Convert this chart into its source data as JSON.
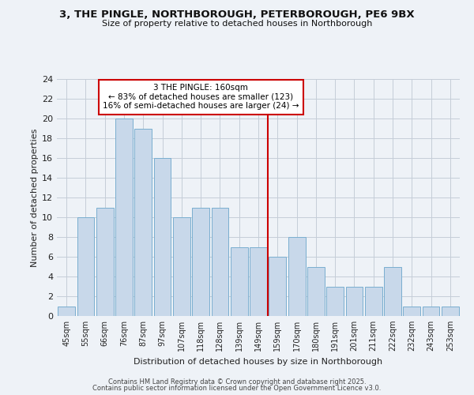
{
  "title1": "3, THE PINGLE, NORTHBOROUGH, PETERBOROUGH, PE6 9BX",
  "title2": "Size of property relative to detached houses in Northborough",
  "xlabel": "Distribution of detached houses by size in Northborough",
  "ylabel": "Number of detached properties",
  "categories": [
    "45sqm",
    "55sqm",
    "66sqm",
    "76sqm",
    "87sqm",
    "97sqm",
    "107sqm",
    "118sqm",
    "128sqm",
    "139sqm",
    "149sqm",
    "159sqm",
    "170sqm",
    "180sqm",
    "191sqm",
    "201sqm",
    "211sqm",
    "222sqm",
    "232sqm",
    "243sqm",
    "253sqm"
  ],
  "values": [
    1,
    10,
    11,
    20,
    19,
    16,
    10,
    11,
    11,
    7,
    7,
    6,
    8,
    5,
    3,
    3,
    3,
    5,
    1,
    1,
    1
  ],
  "bar_color": "#c8d8ea",
  "bar_edge_color": "#7aaed0",
  "vline_color": "#cc0000",
  "annotation_text": "3 THE PINGLE: 160sqm\n← 83% of detached houses are smaller (123)\n16% of semi-detached houses are larger (24) →",
  "annotation_box_color": "#cc0000",
  "ylim": [
    0,
    24
  ],
  "yticks": [
    0,
    2,
    4,
    6,
    8,
    10,
    12,
    14,
    16,
    18,
    20,
    22,
    24
  ],
  "background_color": "#eef2f7",
  "footer_line1": "Contains HM Land Registry data © Crown copyright and database right 2025.",
  "footer_line2": "Contains public sector information licensed under the Open Government Licence v3.0.",
  "grid_color": "#c5cdd8"
}
